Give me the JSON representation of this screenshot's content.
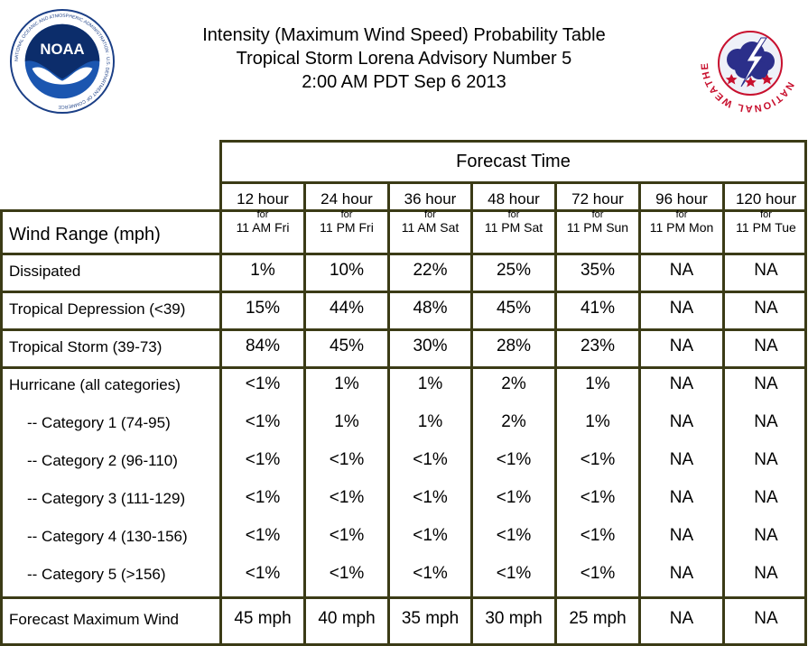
{
  "header": {
    "line1": "Intensity (Maximum Wind Speed) Probability Table",
    "line2": "Tropical Storm Lorena Advisory Number 5",
    "line3": "2:00 AM PDT Sep 6 2013"
  },
  "logos": {
    "noaa_text": "NOAA",
    "noaa_ring": "NATIONAL OCEANIC AND ATMOSPHERIC ADMINISTRATION · U.S. DEPARTMENT OF COMMERCE",
    "nws_ring": "NATIONAL WEATHER SERVICE"
  },
  "table": {
    "forecast_time_label": "Forecast Time",
    "row_header_label": "Wind Range (mph)",
    "columns": [
      {
        "hour": "12 hour",
        "for": "for",
        "time": "11 AM Fri"
      },
      {
        "hour": "24 hour",
        "for": "for",
        "time": "11 PM Fri"
      },
      {
        "hour": "36 hour",
        "for": "for",
        "time": "11 AM Sat"
      },
      {
        "hour": "48 hour",
        "for": "for",
        "time": "11 PM Sat"
      },
      {
        "hour": "72 hour",
        "for": "for",
        "time": "11 PM Sun"
      },
      {
        "hour": "96 hour",
        "for": "for",
        "time": "11 PM Mon"
      },
      {
        "hour": "120 hour",
        "for": "for",
        "time": "11 PM Tue"
      }
    ],
    "rows": [
      {
        "label": "Dissipated",
        "values": [
          "1%",
          "10%",
          "22%",
          "25%",
          "35%",
          "NA",
          "NA"
        ]
      },
      {
        "label": "Tropical Depression (<39)",
        "values": [
          "15%",
          "44%",
          "48%",
          "45%",
          "41%",
          "NA",
          "NA"
        ]
      },
      {
        "label": "Tropical Storm (39-73)",
        "values": [
          "84%",
          "45%",
          "30%",
          "28%",
          "23%",
          "NA",
          "NA"
        ]
      },
      {
        "label": "Hurricane (all categories)",
        "values": [
          "<1%",
          "1%",
          "1%",
          "2%",
          "1%",
          "NA",
          "NA"
        ]
      },
      {
        "label": "-- Category 1 (74-95)",
        "values": [
          "<1%",
          "1%",
          "1%",
          "2%",
          "1%",
          "NA",
          "NA"
        ]
      },
      {
        "label": "-- Category 2 (96-110)",
        "values": [
          "<1%",
          "<1%",
          "<1%",
          "<1%",
          "<1%",
          "NA",
          "NA"
        ]
      },
      {
        "label": "-- Category 3 (111-129)",
        "values": [
          "<1%",
          "<1%",
          "<1%",
          "<1%",
          "<1%",
          "NA",
          "NA"
        ]
      },
      {
        "label": "-- Category 4 (130-156)",
        "values": [
          "<1%",
          "<1%",
          "<1%",
          "<1%",
          "<1%",
          "NA",
          "NA"
        ]
      },
      {
        "label": "-- Category 5 (>156)",
        "values": [
          "<1%",
          "<1%",
          "<1%",
          "<1%",
          "<1%",
          "NA",
          "NA"
        ]
      },
      {
        "label": "Forecast Maximum Wind",
        "values": [
          "45 mph",
          "40 mph",
          "35 mph",
          "30 mph",
          "25 mph",
          "NA",
          "NA"
        ]
      }
    ]
  }
}
